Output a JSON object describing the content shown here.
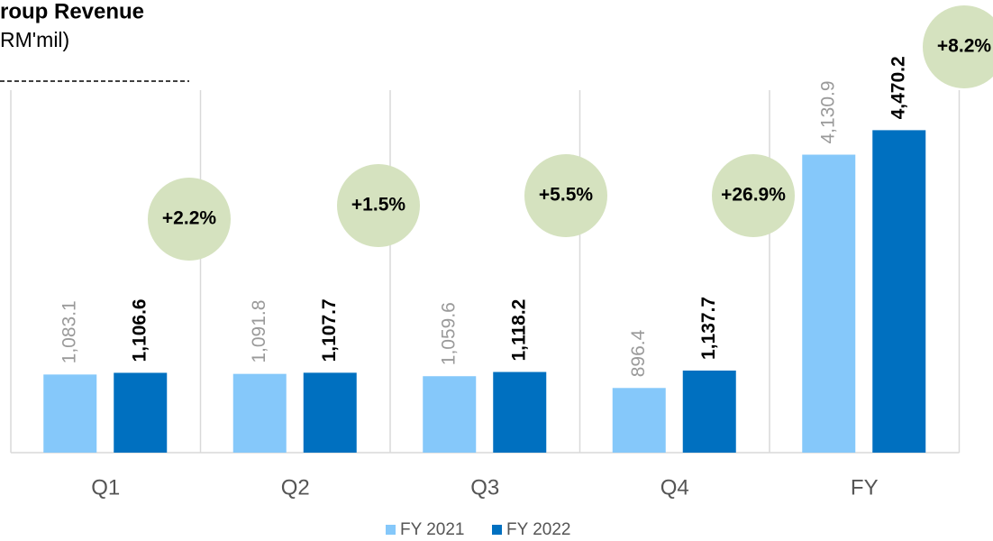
{
  "chart_data": {
    "type": "bar",
    "title": "roup Revenue",
    "subtitle": "RM'mil)",
    "categories": [
      "Q1",
      "Q2",
      "Q3",
      "Q4",
      "FY"
    ],
    "series": [
      {
        "name": "FY 2021",
        "color": "#85c8fa",
        "values": [
          1083.1,
          1091.8,
          1059.6,
          896.4,
          4130.9
        ],
        "value_labels": [
          "1,083.1",
          "1,091.8",
          "1,059.6",
          "896.4",
          "4,130.9"
        ]
      },
      {
        "name": "FY 2022",
        "color": "#0070c0",
        "values": [
          1106.6,
          1107.7,
          1118.2,
          1137.7,
          4470.2
        ],
        "value_labels": [
          "1,106.6",
          "1,107.7",
          "1,118.2",
          "1,137.7",
          "4,470.2"
        ]
      }
    ],
    "annotations": [
      "+2.2%",
      "+1.5%",
      "+5.5%",
      "+26.9%",
      "+8.2%"
    ],
    "ylim": [
      0,
      6250
    ],
    "legend": "bottom"
  }
}
